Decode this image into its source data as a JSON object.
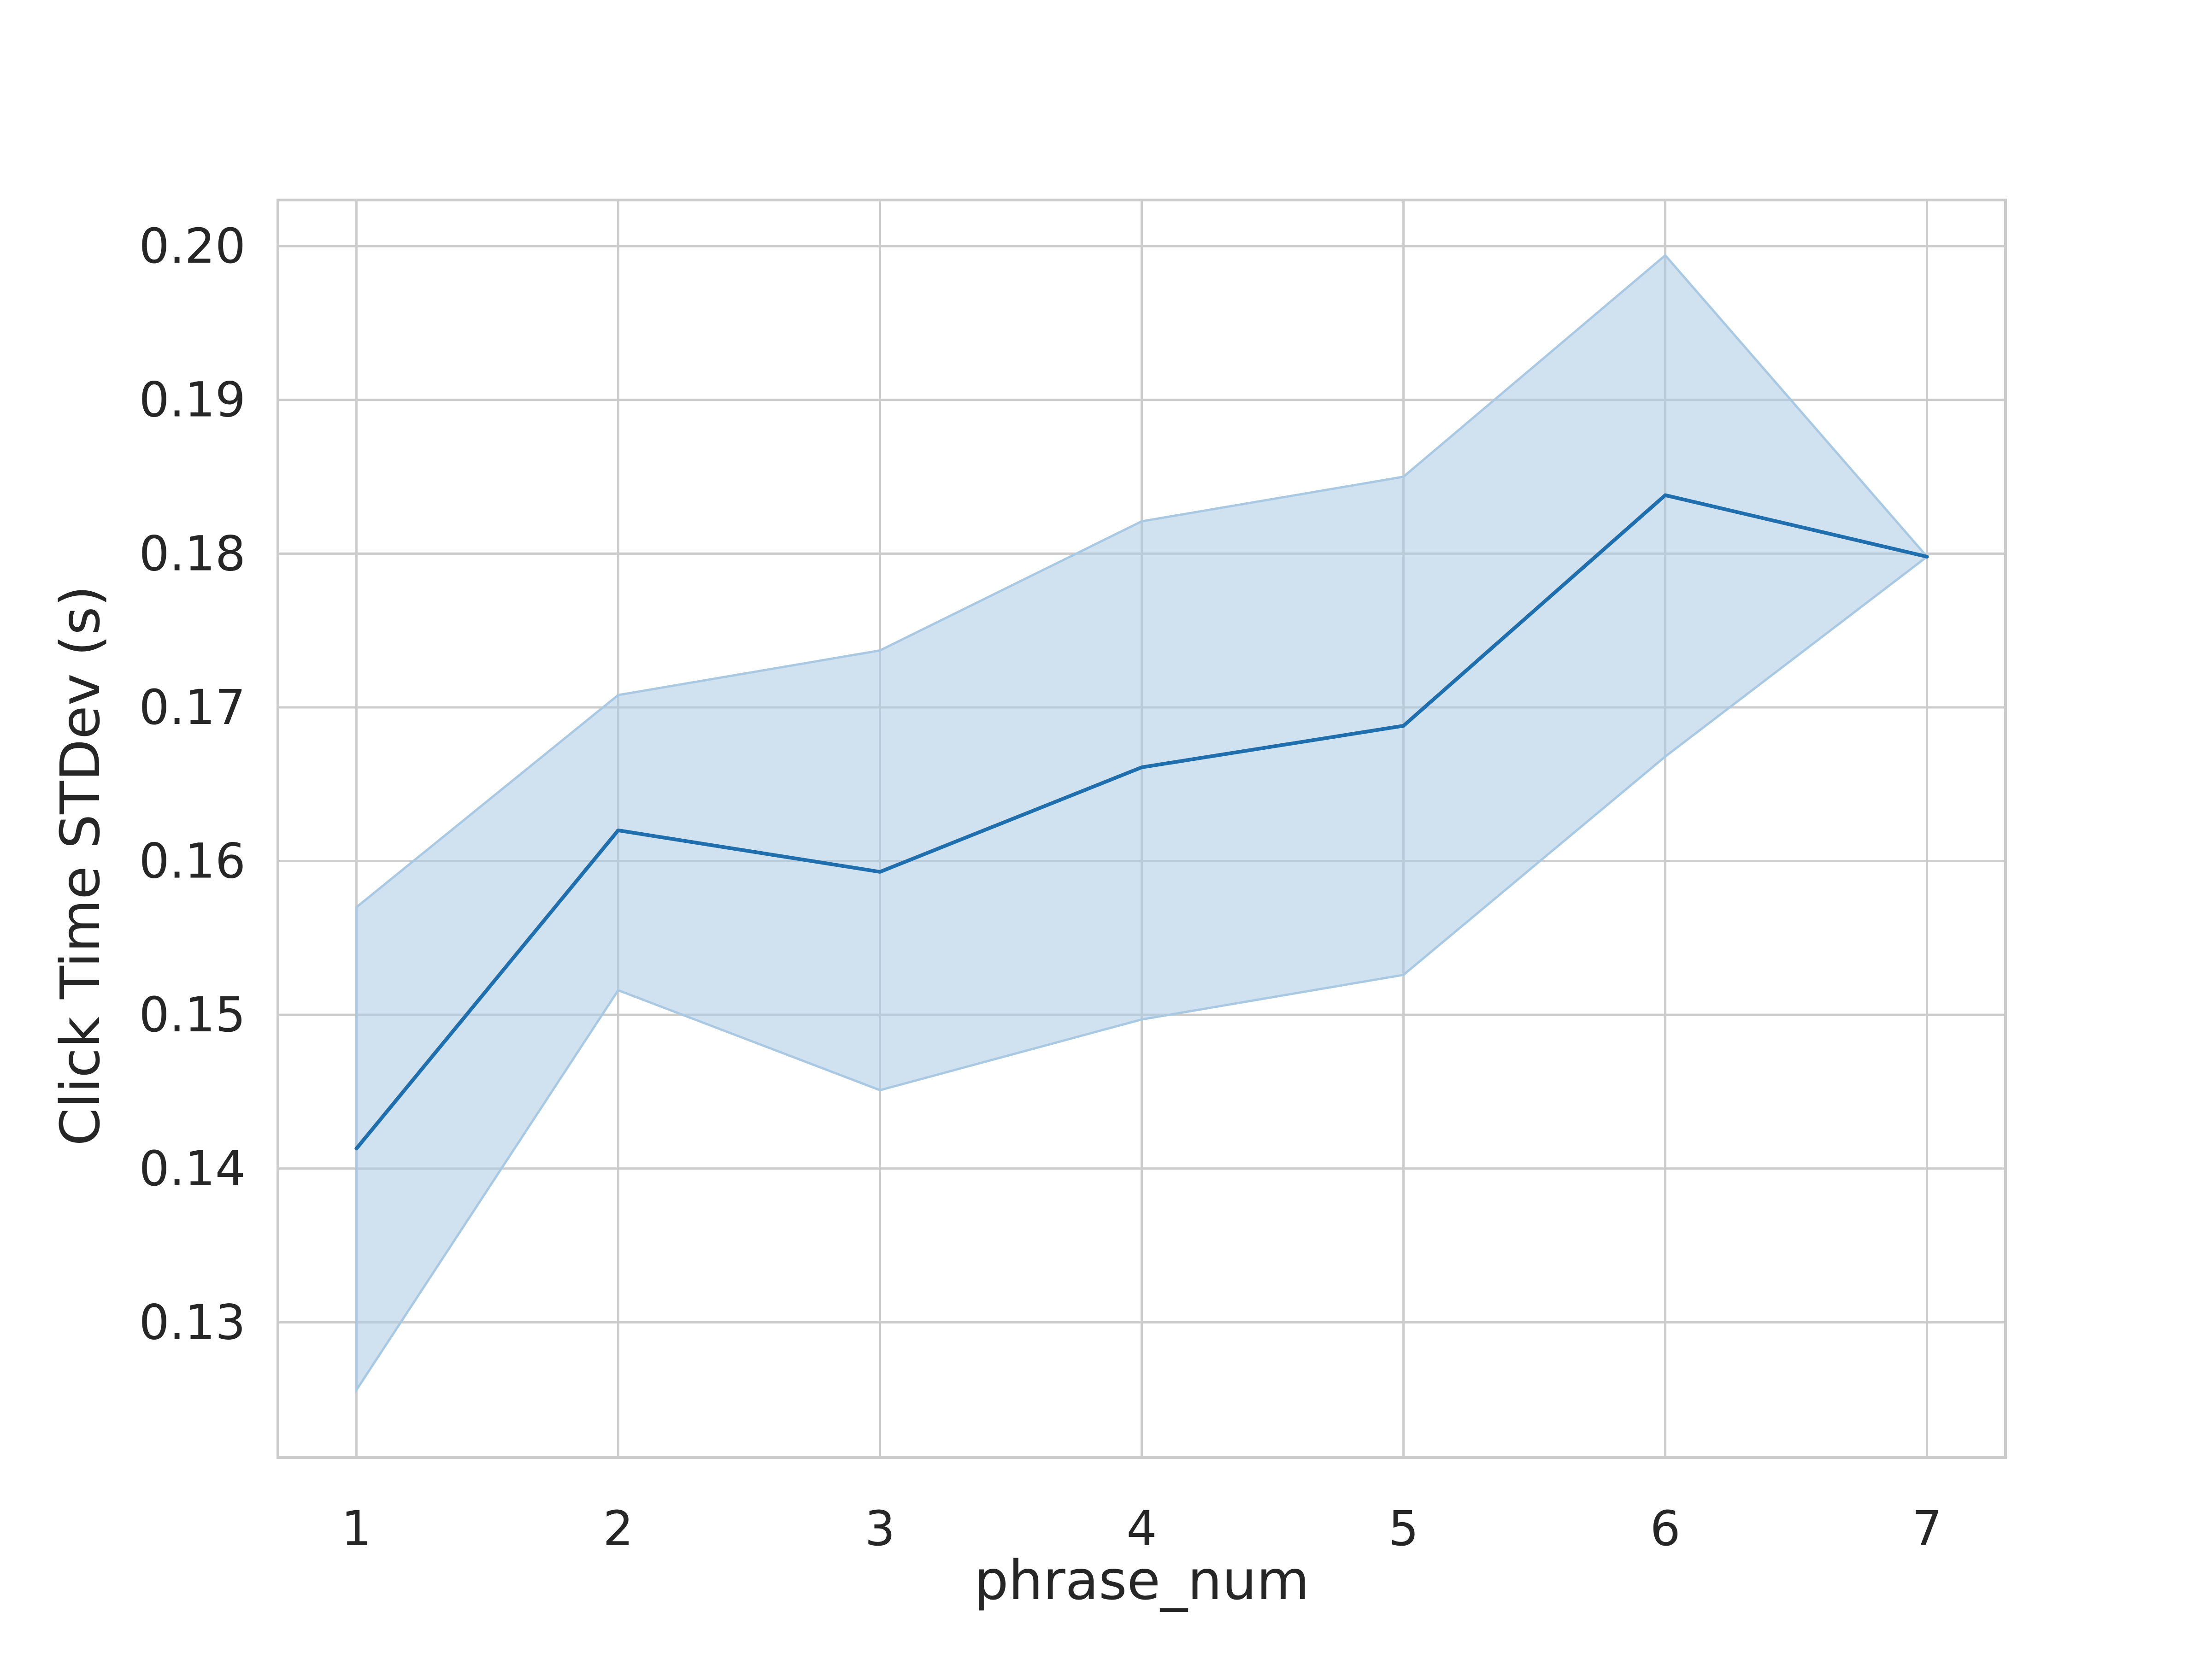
{
  "chart_data": {
    "type": "line",
    "title": "",
    "xlabel": "phrase_num",
    "ylabel": "Click Time STDev (s)",
    "x": [
      1,
      2,
      3,
      4,
      5,
      6,
      7
    ],
    "x_ticks": [
      "1",
      "2",
      "3",
      "4",
      "5",
      "6",
      "7"
    ],
    "xlim": [
      0.7,
      7.3
    ],
    "ylim": [
      0.1212,
      0.203
    ],
    "y_ticks": [
      "0.13",
      "0.14",
      "0.15",
      "0.16",
      "0.17",
      "0.18",
      "0.19",
      "0.20"
    ],
    "grid": true,
    "legend": "none",
    "series": [
      {
        "values": [
          0.1413,
          0.162,
          0.1593,
          0.1661,
          0.1688,
          0.1838,
          0.1798
        ],
        "ci_lower": [
          0.1256,
          0.1516,
          0.1451,
          0.1497,
          0.1526,
          0.1668,
          0.1798
        ],
        "ci_upper": [
          0.157,
          0.1708,
          0.1737,
          0.1821,
          0.185,
          0.1994,
          0.1798
        ],
        "color": "#1f6fae",
        "band_color": "#a9c9e3"
      }
    ]
  }
}
